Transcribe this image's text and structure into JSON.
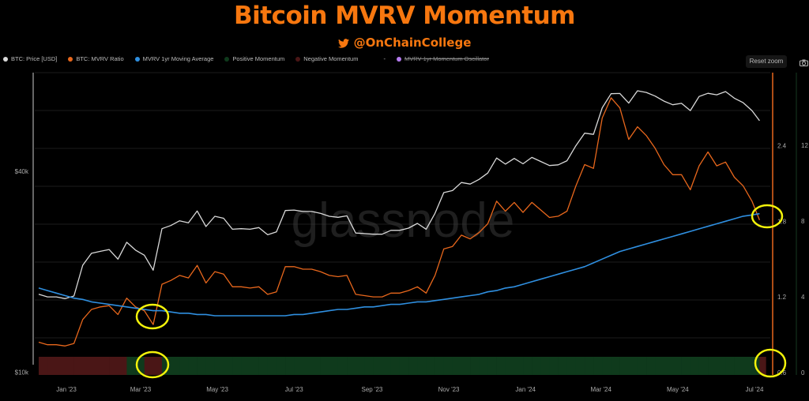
{
  "header": {
    "title": "Bitcoin MVRV Momentum",
    "handle": "@OnChainCollege",
    "handle_icon": "twitter-bird-icon"
  },
  "legend": [
    {
      "label": "BTC: Price [USD]",
      "color": "#d9d9d9",
      "hidden": false
    },
    {
      "label": "BTC: MVRV Ratio",
      "color": "#e8671c",
      "hidden": false
    },
    {
      "label": "MVRV 1yr Moving Average",
      "color": "#2f8fe0",
      "hidden": false
    },
    {
      "label": "Positive Momentum",
      "color": "#0f3a1c",
      "hidden": false
    },
    {
      "label": "Negative Momentum",
      "color": "#4a1616",
      "hidden": false
    },
    {
      "label": "-",
      "color": "",
      "hidden": false
    },
    {
      "label": "MVRV 1yr Momentum Oscillator",
      "color": "#b57cf0",
      "hidden": true
    }
  ],
  "toolbar": {
    "reset_zoom": "Reset zoom",
    "camera_icon": "camera-icon"
  },
  "watermark": "glassnode",
  "chart_data": {
    "type": "line",
    "title": "Bitcoin MVRV Momentum",
    "x_ticks": [
      "Jan '23",
      "Mar '23",
      "May '23",
      "Jul '23",
      "Sep '23",
      "Nov '23",
      "Jan '24",
      "Mar '24",
      "May '24",
      "Jul '24"
    ],
    "x_tick_dates": [
      "2023-01-01",
      "2023-03-01",
      "2023-05-01",
      "2023-07-01",
      "2023-09-01",
      "2023-11-01",
      "2024-01-01",
      "2024-03-01",
      "2024-05-01",
      "2024-07-01"
    ],
    "left_axis": {
      "scale": "log",
      "ticks": [
        "$10k",
        "$40k"
      ],
      "tick_values": [
        10000,
        40000
      ],
      "range": [
        9800,
        79000
      ]
    },
    "right_axis_mvrv": {
      "ticks": [
        "0.6",
        "1.2",
        "1.8",
        "2.4"
      ],
      "tick_values": [
        0.6,
        1.2,
        1.8,
        2.4
      ],
      "range": [
        0.58,
        2.98
      ]
    },
    "right_axis_oscillator": {
      "ticks": [
        "0",
        "4",
        "8",
        "12"
      ],
      "tick_values": [
        0,
        4,
        8,
        12
      ]
    },
    "grid": true,
    "legend_position": "top-left",
    "x": [
      "2022-12-10",
      "2022-12-17",
      "2022-12-24",
      "2022-12-31",
      "2023-01-07",
      "2023-01-14",
      "2023-01-21",
      "2023-01-28",
      "2023-02-04",
      "2023-02-11",
      "2023-02-18",
      "2023-02-25",
      "2023-03-04",
      "2023-03-11",
      "2023-03-18",
      "2023-03-25",
      "2023-04-01",
      "2023-04-08",
      "2023-04-15",
      "2023-04-22",
      "2023-04-29",
      "2023-05-06",
      "2023-05-13",
      "2023-05-20",
      "2023-05-27",
      "2023-06-03",
      "2023-06-10",
      "2023-06-17",
      "2023-06-24",
      "2023-07-01",
      "2023-07-08",
      "2023-07-15",
      "2023-07-22",
      "2023-07-29",
      "2023-08-05",
      "2023-08-12",
      "2023-08-19",
      "2023-08-26",
      "2023-09-02",
      "2023-09-09",
      "2023-09-16",
      "2023-09-23",
      "2023-09-30",
      "2023-10-07",
      "2023-10-14",
      "2023-10-21",
      "2023-10-28",
      "2023-11-04",
      "2023-11-11",
      "2023-11-18",
      "2023-11-25",
      "2023-12-02",
      "2023-12-09",
      "2023-12-16",
      "2023-12-23",
      "2023-12-30",
      "2024-01-06",
      "2024-01-13",
      "2024-01-20",
      "2024-01-27",
      "2024-02-03",
      "2024-02-10",
      "2024-02-17",
      "2024-02-24",
      "2024-03-02",
      "2024-03-09",
      "2024-03-16",
      "2024-03-23",
      "2024-03-30",
      "2024-04-06",
      "2024-04-13",
      "2024-04-20",
      "2024-04-27",
      "2024-05-04",
      "2024-05-11",
      "2024-05-18",
      "2024-05-25",
      "2024-06-01",
      "2024-06-08",
      "2024-06-15",
      "2024-06-22",
      "2024-06-29",
      "2024-07-05"
    ],
    "series": [
      {
        "name": "BTC: Price [USD]",
        "axis": "left",
        "color": "#d9d9d9",
        "values": [
          17100,
          16800,
          16800,
          16600,
          16900,
          20900,
          22700,
          23000,
          23300,
          21800,
          24500,
          23200,
          22400,
          20200,
          26900,
          27500,
          28400,
          28000,
          30400,
          27300,
          29300,
          28900,
          26800,
          26900,
          26800,
          27100,
          25800,
          26300,
          30500,
          30600,
          30300,
          30300,
          29900,
          29300,
          29100,
          29400,
          26100,
          26000,
          25900,
          25900,
          26600,
          26600,
          27000,
          27900,
          26800,
          29900,
          34500,
          35000,
          37000,
          36600,
          37800,
          39500,
          43800,
          42000,
          43700,
          42100,
          44000,
          42800,
          41600,
          41800,
          43000,
          47700,
          52000,
          51600,
          62000,
          68300,
          68400,
          64000,
          69700,
          68900,
          67200,
          64900,
          63300,
          63900,
          60800,
          67000,
          68500,
          67800,
          69300,
          66200,
          64200,
          60800,
          56700
        ]
      },
      {
        "name": "BTC: MVRV Ratio",
        "axis": "right",
        "color": "#e8671c",
        "values": [
          0.84,
          0.82,
          0.82,
          0.81,
          0.83,
          1.02,
          1.1,
          1.12,
          1.13,
          1.06,
          1.19,
          1.12,
          1.09,
          0.98,
          1.3,
          1.33,
          1.37,
          1.35,
          1.45,
          1.31,
          1.4,
          1.38,
          1.28,
          1.28,
          1.27,
          1.28,
          1.22,
          1.24,
          1.44,
          1.44,
          1.42,
          1.42,
          1.4,
          1.37,
          1.36,
          1.37,
          1.22,
          1.21,
          1.2,
          1.2,
          1.23,
          1.23,
          1.25,
          1.28,
          1.23,
          1.37,
          1.58,
          1.6,
          1.69,
          1.66,
          1.71,
          1.78,
          1.96,
          1.88,
          1.95,
          1.87,
          1.95,
          1.89,
          1.83,
          1.84,
          1.88,
          2.08,
          2.25,
          2.22,
          2.62,
          2.78,
          2.7,
          2.45,
          2.55,
          2.48,
          2.38,
          2.25,
          2.17,
          2.17,
          2.05,
          2.24,
          2.35,
          2.24,
          2.27,
          2.15,
          2.08,
          1.96,
          1.81
        ]
      },
      {
        "name": "MVRV 1yr Moving Average",
        "axis": "right",
        "color": "#2f8fe0",
        "values": [
          1.27,
          1.25,
          1.23,
          1.21,
          1.19,
          1.18,
          1.16,
          1.15,
          1.14,
          1.13,
          1.12,
          1.11,
          1.1,
          1.09,
          1.09,
          1.08,
          1.07,
          1.07,
          1.06,
          1.06,
          1.05,
          1.05,
          1.05,
          1.05,
          1.05,
          1.05,
          1.05,
          1.05,
          1.05,
          1.06,
          1.06,
          1.07,
          1.08,
          1.09,
          1.1,
          1.1,
          1.11,
          1.12,
          1.12,
          1.13,
          1.14,
          1.14,
          1.15,
          1.16,
          1.16,
          1.17,
          1.18,
          1.19,
          1.2,
          1.21,
          1.22,
          1.24,
          1.25,
          1.27,
          1.28,
          1.3,
          1.32,
          1.34,
          1.36,
          1.38,
          1.4,
          1.42,
          1.44,
          1.47,
          1.5,
          1.53,
          1.56,
          1.58,
          1.6,
          1.62,
          1.64,
          1.66,
          1.68,
          1.7,
          1.72,
          1.74,
          1.76,
          1.78,
          1.8,
          1.82,
          1.84,
          1.85,
          1.86
        ]
      }
    ],
    "momentum_colors": {
      "positive": "#0f3a1c",
      "negative": "#4a1616"
    },
    "annotation_color": "#f2f20a"
  }
}
